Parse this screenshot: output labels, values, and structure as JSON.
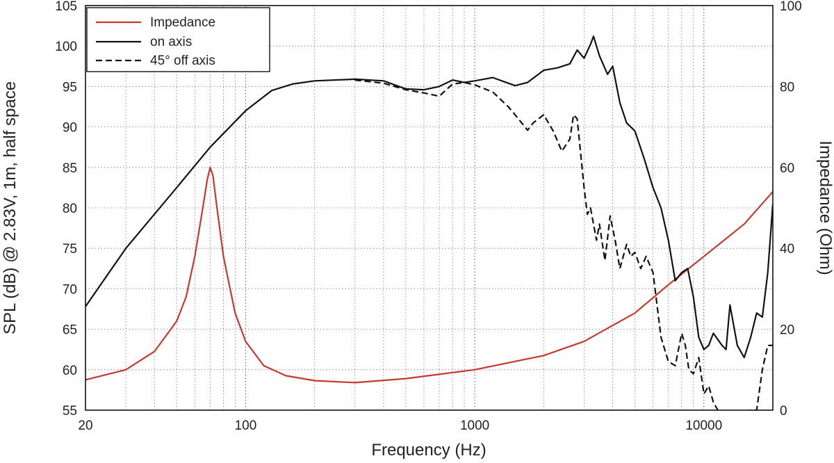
{
  "chart_data": {
    "type": "line",
    "xlabel": "Frequency (Hz)",
    "ylabel_left": "SPL (dB) @ 2.83V, 1m, half space",
    "ylabel_right": "Impedance (Ohm)",
    "x_scale": "log",
    "xlim": [
      20,
      20000
    ],
    "ylim_left": [
      55,
      105
    ],
    "ylim_right": [
      0,
      100
    ],
    "x_ticks": [
      "20",
      "100",
      "1000",
      "10000"
    ],
    "y_ticks_left": [
      "55",
      "60",
      "65",
      "70",
      "75",
      "80",
      "85",
      "90",
      "95",
      "100",
      "105"
    ],
    "y_ticks_right": [
      "0",
      "20",
      "40",
      "60",
      "80",
      "100"
    ],
    "grid": true,
    "legend_position": "top-left",
    "series": [
      {
        "name": "Impedance",
        "axis": "right",
        "color": "#c8372d",
        "style": "solid",
        "x": [
          20,
          30,
          40,
          50,
          55,
          60,
          65,
          68,
          70,
          72,
          75,
          80,
          90,
          100,
          120,
          150,
          200,
          300,
          500,
          1000,
          2000,
          3000,
          5000,
          7000,
          10000,
          15000,
          20000
        ],
        "y": [
          7.5,
          10,
          14.5,
          22,
          28,
          38,
          50,
          57,
          60,
          58,
          50,
          38,
          24,
          17,
          11,
          8.5,
          7.3,
          6.8,
          7.8,
          10,
          13.5,
          17,
          24,
          31,
          38,
          46,
          54
        ]
      },
      {
        "name": "on axis",
        "axis": "left",
        "color": "#111111",
        "style": "solid",
        "x": [
          20,
          30,
          50,
          70,
          100,
          130,
          160,
          200,
          300,
          400,
          500,
          600,
          700,
          800,
          900,
          1000,
          1200,
          1500,
          1700,
          2000,
          2300,
          2600,
          2800,
          3000,
          3200,
          3300,
          3500,
          3800,
          4000,
          4300,
          4600,
          5000,
          5500,
          6000,
          6500,
          7000,
          7500,
          8000,
          8500,
          9000,
          9500,
          10000,
          10500,
          11000,
          12000,
          12500,
          13000,
          14000,
          15000,
          16000,
          17000,
          18000,
          19000,
          20000
        ],
        "y": [
          67.8,
          75,
          82.5,
          87.5,
          92,
          94.5,
          95.3,
          95.7,
          95.9,
          95.7,
          94.7,
          94.6,
          95,
          95.8,
          95.5,
          95.7,
          96.1,
          95.1,
          95.5,
          97,
          97.3,
          97.8,
          99.5,
          98.5,
          100.2,
          101.2,
          98.8,
          96.5,
          97.5,
          93,
          90.5,
          89.5,
          86,
          82.5,
          80,
          76,
          71,
          72,
          72.5,
          69,
          64,
          62.5,
          63,
          64.5,
          63,
          62.5,
          68,
          63,
          61.5,
          64,
          67,
          66.5,
          72,
          80.5
        ]
      },
      {
        "name": "45° off axis",
        "axis": "left",
        "color": "#111111",
        "style": "dashed",
        "x": [
          300,
          400,
          500,
          600,
          700,
          800,
          900,
          1000,
          1200,
          1400,
          1500,
          1700,
          1800,
          2000,
          2200,
          2400,
          2600,
          2700,
          2800,
          3000,
          3100,
          3200,
          3400,
          3500,
          3700,
          3900,
          4100,
          4300,
          4600,
          4800,
          5000,
          5300,
          5600,
          6000,
          6500,
          7000,
          7500,
          8000,
          8300,
          8600,
          9000,
          9500,
          10000,
          10500,
          11000,
          11500,
          12000,
          13000,
          14000,
          15000,
          16000,
          17000,
          18000,
          19000,
          20000
        ],
        "y": [
          95.8,
          95.4,
          94.6,
          94.2,
          93.8,
          95.3,
          95.5,
          95.2,
          94.3,
          92.5,
          91.5,
          89.6,
          90.5,
          91.5,
          89.5,
          87,
          88.5,
          91.5,
          91,
          82.5,
          79.2,
          80,
          76,
          78,
          73.5,
          79,
          76,
          72.5,
          75.5,
          74,
          74.5,
          72.5,
          74,
          72,
          64,
          61,
          60.5,
          64.5,
          63,
          60,
          59.5,
          61.5,
          57,
          58,
          56,
          55,
          54,
          53,
          53,
          54,
          55,
          55,
          60,
          63,
          63
        ]
      }
    ]
  }
}
